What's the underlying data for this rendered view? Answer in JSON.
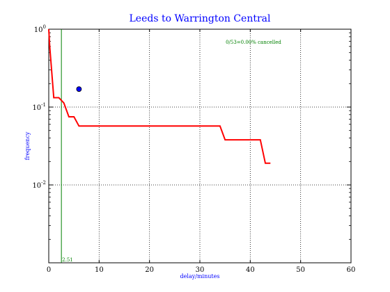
{
  "chart_data": {
    "type": "line",
    "title": "Leeds to Warrington Central",
    "xlabel": "delay/minutes",
    "ylabel": "frequency",
    "xlim": [
      0,
      60
    ],
    "ylim": [
      0.001,
      1
    ],
    "yscale": "log",
    "x_ticks": [
      0,
      10,
      20,
      30,
      40,
      50,
      60
    ],
    "x_tick_labels": [
      "0",
      "10",
      "20",
      "30",
      "40",
      "50",
      "60"
    ],
    "y_ticks": [
      1,
      0.1,
      0.01
    ],
    "y_tick_labels": [
      {
        "base": "10",
        "exp": "0"
      },
      {
        "base": "10",
        "exp": "-1"
      },
      {
        "base": "10",
        "exp": "-2"
      }
    ],
    "grid": true,
    "series": [
      {
        "color": "#ff0000",
        "points": [
          [
            0,
            1.0
          ],
          [
            0.2,
            0.6
          ],
          [
            1,
            0.132
          ],
          [
            2,
            0.132
          ],
          [
            3,
            0.113
          ],
          [
            4,
            0.075
          ],
          [
            5,
            0.075
          ],
          [
            6,
            0.057
          ],
          [
            34,
            0.057
          ],
          [
            35,
            0.038
          ],
          [
            42,
            0.038
          ],
          [
            43,
            0.019
          ],
          [
            44,
            0.019
          ]
        ]
      }
    ],
    "marker": {
      "x": 6,
      "y": 0.17,
      "color": "#0000ff"
    },
    "mean_line": {
      "x": 2.51,
      "label": "2.51",
      "color": "#008000"
    },
    "annotation": {
      "text": "0/53=0.00% cancelled",
      "color": "#008000",
      "position": "top-right"
    },
    "colors": {
      "title": "#0000ff",
      "axis_labels": "#0000ff",
      "annotation": "#008000"
    }
  }
}
